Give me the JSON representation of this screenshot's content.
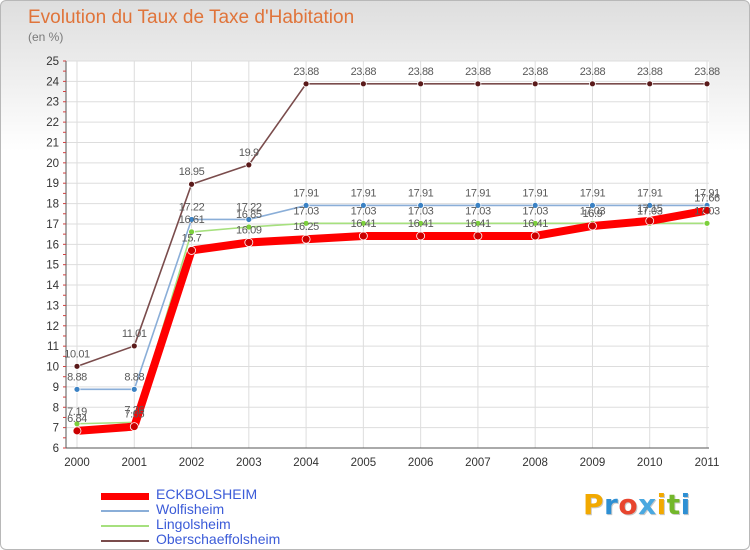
{
  "header": {
    "title": "Evolution du Taux de Taxe d'Habitation",
    "subtitle": "(en %)"
  },
  "logo": {
    "letters": [
      "P",
      "r",
      "o",
      "x",
      "i",
      "t",
      "i"
    ],
    "colors": [
      "#f2a900",
      "#2e8fd3",
      "#e8452e",
      "#4aa8e0",
      "#f2a900",
      "#73b72b",
      "#2e8fd3"
    ]
  },
  "chart_data": {
    "type": "line",
    "title": "Evolution du Taux de Taxe d'Habitation",
    "ylabel": "(en %)",
    "xlabel": "",
    "categories": [
      "2000",
      "2001",
      "2002",
      "2003",
      "2004",
      "2005",
      "2006",
      "2007",
      "2008",
      "2009",
      "2010",
      "2011"
    ],
    "ylim": [
      6,
      25
    ],
    "yticks": [
      6,
      7,
      8,
      9,
      10,
      11,
      12,
      13,
      14,
      15,
      16,
      17,
      18,
      19,
      20,
      21,
      22,
      23,
      24,
      25
    ],
    "grid": true,
    "legend_position": "bottom-left",
    "series": [
      {
        "name": "ECKBOLSHEIM",
        "color": "#ff0000",
        "values": [
          6.84,
          7.05,
          15.7,
          16.09,
          16.25,
          16.41,
          16.41,
          16.41,
          16.41,
          16.9,
          17.15,
          17.66
        ],
        "labels": [
          "6.84",
          "7.05",
          "15.7",
          "16.09",
          "16.25",
          "16.41",
          "16.41",
          "16.41",
          "16.41",
          "16.9",
          "17.15",
          "17.66"
        ]
      },
      {
        "name": "Wolfisheim",
        "color": "#8aaed8",
        "values": [
          8.88,
          8.88,
          17.22,
          17.22,
          17.91,
          17.91,
          17.91,
          17.91,
          17.91,
          17.91,
          17.91,
          17.91
        ],
        "labels": [
          "8.88",
          "8.88",
          "17.22",
          "17.22",
          "17.91",
          "17.91",
          "17.91",
          "17.91",
          "17.91",
          "17.91",
          "17.91",
          "17.91"
        ]
      },
      {
        "name": "Lingolsheim",
        "color": "#a6e07e",
        "values": [
          7.19,
          7.26,
          16.61,
          16.85,
          17.03,
          17.03,
          17.03,
          17.03,
          17.03,
          17.03,
          17.03,
          17.03
        ],
        "labels": [
          "7.19",
          "7.26",
          "16.61",
          "16.85",
          "17.03",
          "17.03",
          "17.03",
          "17.03",
          "17.03",
          "17.03",
          "17.03",
          "17.03"
        ]
      },
      {
        "name": "Oberschaeffolsheim",
        "color": "#7a4c4c",
        "values": [
          10.01,
          11.01,
          18.95,
          19.9,
          23.88,
          23.88,
          23.88,
          23.88,
          23.88,
          23.88,
          23.88,
          23.88
        ],
        "labels": [
          "10.01",
          "11.01",
          "18.95",
          "19.9",
          "23.88",
          "23.88",
          "23.88",
          "23.88",
          "23.88",
          "23.88",
          "23.88",
          "23.88"
        ]
      }
    ]
  }
}
